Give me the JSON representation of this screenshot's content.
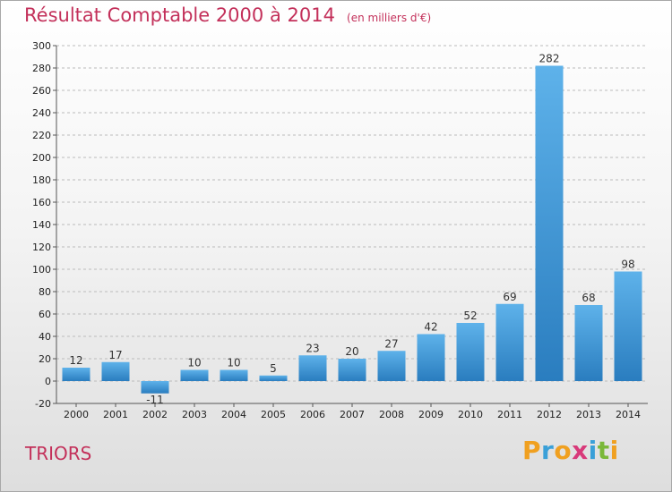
{
  "title": "Résultat Comptable 2000 à 2014",
  "subtitle": "(en milliers d'€)",
  "commune": "TRIORS",
  "logo": {
    "text": "Proxiti",
    "letters": [
      {
        "ch": "P",
        "color": "#f0a020"
      },
      {
        "ch": "r",
        "color": "#3aa0d8"
      },
      {
        "ch": "o",
        "color": "#f0a020"
      },
      {
        "ch": "x",
        "color": "#d83a7a"
      },
      {
        "ch": "i",
        "color": "#3aa0d8"
      },
      {
        "ch": "t",
        "color": "#7ab83a"
      },
      {
        "ch": "i",
        "color": "#f0a020"
      }
    ]
  },
  "colors": {
    "title": "#c3305a",
    "bar_light": "#5eb2ea",
    "bar_dark": "#2a7dbf",
    "grid": "#bbbbbb"
  },
  "chart_data": {
    "type": "bar",
    "categories": [
      "2000",
      "2001",
      "2002",
      "2003",
      "2004",
      "2005",
      "2006",
      "2007",
      "2008",
      "2009",
      "2010",
      "2011",
      "2012",
      "2013",
      "2014"
    ],
    "values": [
      12,
      17,
      -11,
      10,
      10,
      5,
      23,
      20,
      27,
      42,
      52,
      69,
      282,
      68,
      98
    ],
    "ylim": [
      -20,
      300
    ],
    "yticks": [
      -20,
      0,
      20,
      40,
      60,
      80,
      100,
      120,
      140,
      160,
      180,
      200,
      220,
      240,
      260,
      280,
      300
    ],
    "grid": true,
    "grid_style": "dashed horizontal",
    "data_labels": true,
    "xlabel": "",
    "ylabel": ""
  }
}
